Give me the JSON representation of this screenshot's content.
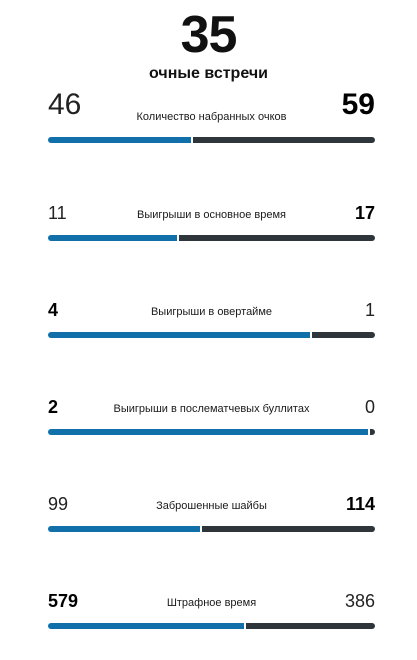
{
  "header": {
    "total": "35",
    "subtitle": "очные встречи"
  },
  "colors": {
    "left_bar": "#1170a9",
    "right_bar": "#2e363c"
  },
  "stats": [
    {
      "label": "Количество набранных очков",
      "left": "46",
      "right": "59",
      "left_share": 0.438
    },
    {
      "label": "Выигрыши в основное время",
      "left": "11",
      "right": "17",
      "left_share": 0.393
    },
    {
      "label": "Выигрыши в овертайме",
      "left": "4",
      "right": "1",
      "left_share": 0.8
    },
    {
      "label": "Выигрыши в послематчевых буллитах",
      "left": "2",
      "right": "0",
      "left_share": 0.98
    },
    {
      "label": "Заброшенные шайбы",
      "left": "99",
      "right": "114",
      "left_share": 0.465
    },
    {
      "label": "Штрафное время",
      "left": "579",
      "right": "386",
      "left_share": 0.6
    }
  ]
}
